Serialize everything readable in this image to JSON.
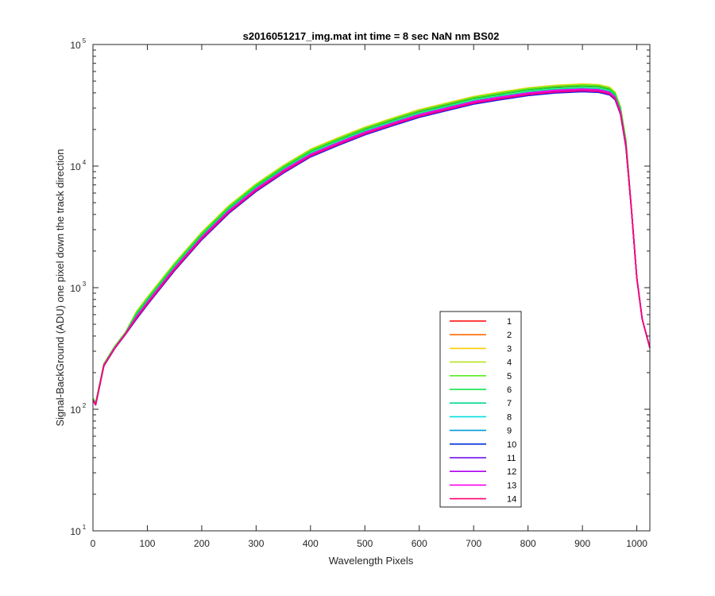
{
  "chart_data": {
    "type": "line",
    "title": "s2016051217_img.mat int time = 8 sec  NaN nm BS02",
    "xlabel": "Wavelength Pixels",
    "ylabel": "Signal-BackGround (ADU) one pixel down the track direction",
    "xlim": [
      0,
      1024
    ],
    "ylim": [
      10,
      100000
    ],
    "yscale": "log",
    "grid": false,
    "legend_position": "lower-right",
    "x_ticks": [
      0,
      100,
      200,
      300,
      400,
      500,
      600,
      700,
      800,
      900,
      1000
    ],
    "y_ticks": [
      {
        "base": "10",
        "exp": "1",
        "value": 10
      },
      {
        "base": "10",
        "exp": "2",
        "value": 100
      },
      {
        "base": "10",
        "exp": "3",
        "value": 1000
      },
      {
        "base": "10",
        "exp": "4",
        "value": 10000
      },
      {
        "base": "10",
        "exp": "5",
        "value": 100000
      }
    ],
    "x": [
      0,
      5,
      10,
      20,
      40,
      60,
      80,
      100,
      150,
      200,
      250,
      300,
      350,
      400,
      450,
      500,
      550,
      600,
      650,
      700,
      750,
      800,
      850,
      900,
      930,
      950,
      960,
      970,
      980,
      990,
      1000,
      1010,
      1024
    ],
    "base_curve": [
      120,
      110,
      140,
      230,
      320,
      420,
      580,
      760,
      1450,
      2600,
      4300,
      6500,
      9200,
      12500,
      15500,
      19000,
      22500,
      26500,
      30000,
      34000,
      37000,
      40000,
      42000,
      43000,
      42500,
      40500,
      37000,
      28000,
      15000,
      4500,
      1200,
      550,
      320
    ],
    "series": [
      {
        "name": "1",
        "color": "#ff0000",
        "factor": 1.06
      },
      {
        "name": "2",
        "color": "#ff6a00",
        "factor": 1.08
      },
      {
        "name": "3",
        "color": "#ffcc00",
        "factor": 1.1
      },
      {
        "name": "4",
        "color": "#b5e61d",
        "factor": 1.09
      },
      {
        "name": "5",
        "color": "#55ee22",
        "factor": 1.08
      },
      {
        "name": "6",
        "color": "#00e040",
        "factor": 1.05
      },
      {
        "name": "7",
        "color": "#00d890",
        "factor": 1.02
      },
      {
        "name": "8",
        "color": "#00e0e0",
        "factor": 1.0
      },
      {
        "name": "9",
        "color": "#0099dd",
        "factor": 0.97
      },
      {
        "name": "10",
        "color": "#0033dd",
        "factor": 0.95
      },
      {
        "name": "11",
        "color": "#6600ee",
        "factor": 0.96
      },
      {
        "name": "12",
        "color": "#b000f0",
        "factor": 0.98
      },
      {
        "name": "13",
        "color": "#ff00ee",
        "factor": 1.0
      },
      {
        "name": "14",
        "color": "#ff0070",
        "factor": 0.97
      }
    ]
  }
}
